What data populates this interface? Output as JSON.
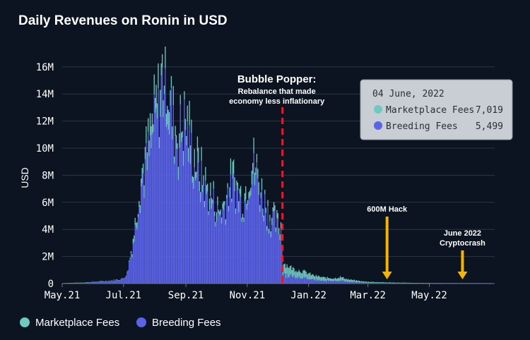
{
  "chart_data": {
    "type": "bar",
    "stacked": true,
    "title": "Daily Revenues on Ronin in USD",
    "ylabel": "USD",
    "xlabel": "",
    "ylim": [
      0,
      17500000
    ],
    "yticks": [
      {
        "value": 0,
        "label": "0"
      },
      {
        "value": 2000000,
        "label": "2M"
      },
      {
        "value": 4000000,
        "label": "4M"
      },
      {
        "value": 6000000,
        "label": "6M"
      },
      {
        "value": 8000000,
        "label": "8M"
      },
      {
        "value": 10000000,
        "label": "10M"
      },
      {
        "value": 12000000,
        "label": "12M"
      },
      {
        "value": 14000000,
        "label": "14M"
      },
      {
        "value": 16000000,
        "label": "16M"
      }
    ],
    "xlim_days": [
      0,
      430
    ],
    "xticks": [
      {
        "day": 0,
        "label": "May.21"
      },
      {
        "day": 61,
        "label": "Jul.21"
      },
      {
        "day": 123,
        "label": "Sep.21"
      },
      {
        "day": 184,
        "label": "Nov.21"
      },
      {
        "day": 245,
        "label": "Jan.22"
      },
      {
        "day": 304,
        "label": "Mar.22"
      },
      {
        "day": 365,
        "label": "May.22"
      }
    ],
    "start_date": "2021-05-01",
    "series": [
      {
        "name": "Marketplace Fees",
        "color": "#6ec9c0"
      },
      {
        "name": "Breeding Fees",
        "color": "#5b63e9"
      }
    ],
    "total_keypoints": [
      [
        0,
        30000
      ],
      [
        20,
        80000
      ],
      [
        35,
        150000
      ],
      [
        50,
        250000
      ],
      [
        60,
        380000
      ],
      [
        64,
        800000
      ],
      [
        68,
        2500000
      ],
      [
        72,
        4500000
      ],
      [
        76,
        7500000
      ],
      [
        80,
        9000000
      ],
      [
        85,
        10500000
      ],
      [
        90,
        12500000
      ],
      [
        95,
        14000000
      ],
      [
        100,
        16500000
      ],
      [
        103,
        17000000
      ],
      [
        106,
        14500000
      ],
      [
        110,
        12500000
      ],
      [
        115,
        11500000
      ],
      [
        120,
        12500000
      ],
      [
        125,
        12000000
      ],
      [
        130,
        10000000
      ],
      [
        135,
        9000000
      ],
      [
        140,
        8000000
      ],
      [
        145,
        7000000
      ],
      [
        150,
        6500000
      ],
      [
        155,
        5500000
      ],
      [
        160,
        6000000
      ],
      [
        165,
        7500000
      ],
      [
        170,
        8000000
      ],
      [
        175,
        7000000
      ],
      [
        180,
        6500000
      ],
      [
        185,
        8500000
      ],
      [
        188,
        9500000
      ],
      [
        192,
        9000000
      ],
      [
        196,
        7500000
      ],
      [
        200,
        6500000
      ],
      [
        205,
        5500000
      ],
      [
        210,
        5000000
      ],
      [
        214,
        4500000
      ],
      [
        217,
        4500000
      ],
      [
        219,
        1600000
      ],
      [
        225,
        1300000
      ],
      [
        230,
        1100000
      ],
      [
        240,
        900000
      ],
      [
        250,
        600000
      ],
      [
        260,
        450000
      ],
      [
        270,
        400000
      ],
      [
        276,
        500000
      ],
      [
        285,
        300000
      ],
      [
        300,
        150000
      ],
      [
        320,
        90000
      ],
      [
        350,
        50000
      ],
      [
        380,
        35000
      ],
      [
        430,
        25000
      ]
    ],
    "tooltip": {
      "date": "04 June, 2022",
      "rows": [
        {
          "series": "Marketplace Fees",
          "value": "7,019"
        },
        {
          "series": "Breeding Fees",
          "value": "5,499"
        }
      ]
    },
    "annotations": [
      {
        "day": 219,
        "title": "Bubble Popper:",
        "lines": [
          "Rebalance that made",
          "economy less inflationary"
        ],
        "style": "dashed-red-line"
      },
      {
        "day": 323,
        "lines": [
          "600M Hack"
        ],
        "style": "yellow-arrow"
      },
      {
        "day": 398,
        "lines": [
          "June 2022",
          "Cryptocrash"
        ],
        "style": "yellow-arrow"
      }
    ],
    "legend": {
      "position": "bottom-left",
      "items": [
        {
          "label": "Marketplace Fees",
          "color": "#6ec9c0"
        },
        {
          "label": "Breeding Fees",
          "color": "#5b63e9"
        }
      ]
    }
  }
}
